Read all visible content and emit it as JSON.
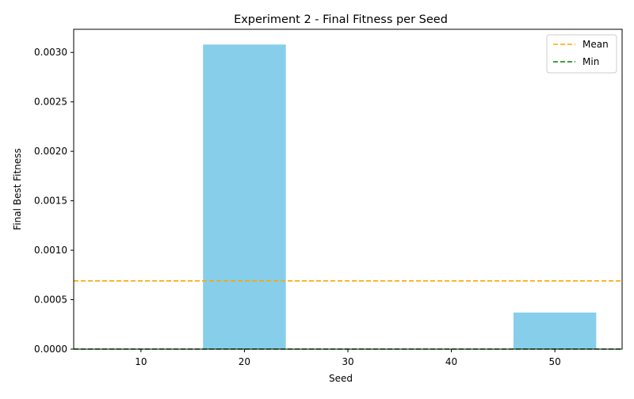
{
  "chart_data": {
    "type": "bar",
    "title": "Experiment 2 - Final Fitness per Seed",
    "xlabel": "Seed",
    "ylabel": "Final Best Fitness",
    "x": [
      10,
      20,
      30,
      40,
      50
    ],
    "values": [
      2e-06,
      0.00308,
      5e-07,
      3e-07,
      0.00037
    ],
    "bar_width": 8,
    "bar_color": "#87CEEB",
    "xlim": [
      3.5,
      56.5
    ],
    "ylim": [
      0,
      0.003234
    ],
    "x_ticks": [
      10,
      20,
      30,
      40,
      50
    ],
    "x_tick_labels": [
      "10",
      "20",
      "30",
      "40",
      "50"
    ],
    "y_ticks": [
      0,
      0.0005,
      0.001,
      0.0015,
      0.002,
      0.0025,
      0.003
    ],
    "y_tick_labels": [
      "0.0000",
      "0.0005",
      "0.0010",
      "0.0015",
      "0.0020",
      "0.0025",
      "0.0030"
    ],
    "hlines": [
      {
        "name": "Mean",
        "value": 0.00069,
        "color": "#FFA500",
        "style": "dashed"
      },
      {
        "name": "Min",
        "value": 3e-07,
        "color": "#008000",
        "style": "dashed"
      }
    ],
    "legend": [
      "Mean",
      "Min"
    ],
    "legend_position": "top-right",
    "grid": false
  }
}
